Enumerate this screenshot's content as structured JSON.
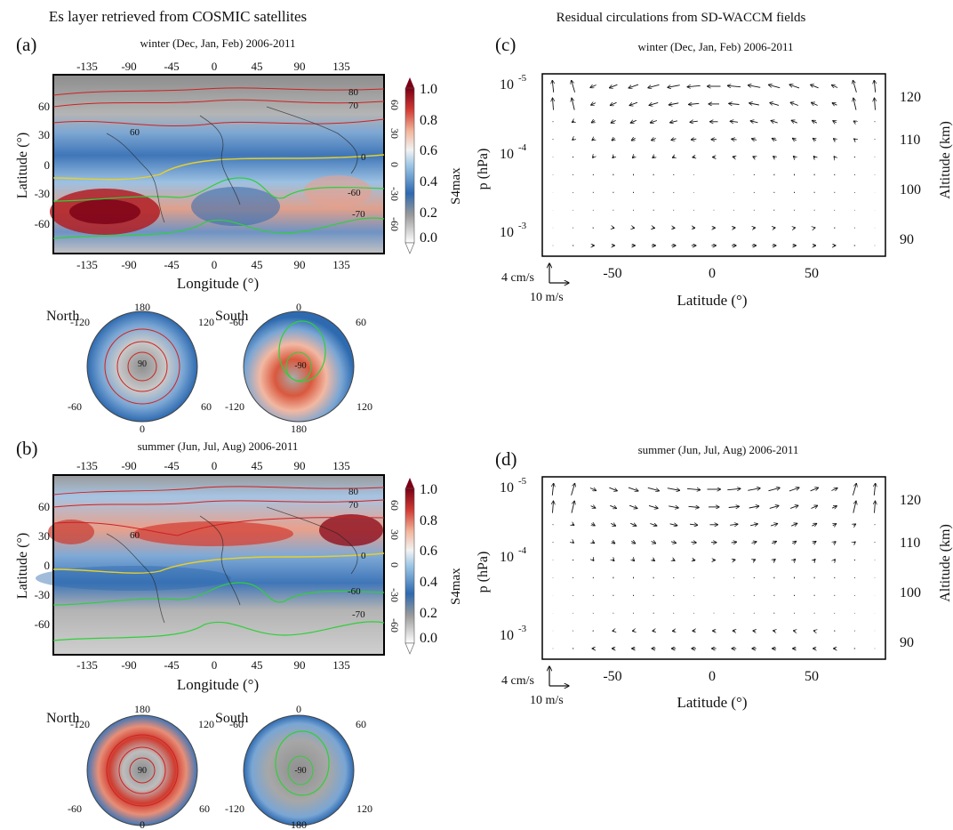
{
  "left_title": "Es layer retrieved from COSMIC satellites",
  "right_title": "Residual circulations from SD-WACCM fields",
  "colorbar": {
    "label": "S4max",
    "ticks": [
      "1.0",
      "0.8",
      "0.6",
      "0.4",
      "0.2",
      "0.0"
    ],
    "colors": [
      "#ffffff",
      "#9a9a9a",
      "#2e6ab0",
      "#9cc6e6",
      "#f2f2f2",
      "#f3b79d",
      "#d13b34",
      "#7a0015"
    ]
  },
  "maps": [
    {
      "panel": "(a)",
      "title": "winter (Dec, Jan, Feb)   2006-2011",
      "xticks": [
        "-135",
        "-90",
        "-45",
        "0",
        "45",
        "90",
        "135"
      ],
      "yticks_left": [
        "60",
        "30",
        "0",
        "-30",
        "-60"
      ],
      "yticks_right": [
        "60",
        "30",
        "0",
        "-30",
        "-60"
      ],
      "xlabel": "Longitude (°)",
      "ylabel": "Latitude (°)",
      "contour_labels": [
        "80",
        "70",
        "60",
        "0",
        "-60",
        "-70"
      ],
      "polar": [
        {
          "name": "North",
          "labels": [
            "180",
            "-120",
            "120",
            "-60",
            "60",
            "0"
          ],
          "center": "90"
        },
        {
          "name": "South",
          "labels": [
            "0",
            "-60",
            "60",
            "-120",
            "120",
            "180"
          ],
          "center": "-90"
        }
      ]
    },
    {
      "panel": "(b)",
      "title": "summer (Jun, Jul, Aug)   2006-2011",
      "xticks": [
        "-135",
        "-90",
        "-45",
        "0",
        "45",
        "90",
        "135"
      ],
      "yticks_left": [
        "60",
        "30",
        "0",
        "-30",
        "-60"
      ],
      "yticks_right": [
        "60",
        "30",
        "0",
        "-30",
        "-60"
      ],
      "xlabel": "Longitude (°)",
      "ylabel": "Latitude (°)",
      "contour_labels": [
        "80",
        "70",
        "60",
        "0",
        "-60",
        "-70"
      ],
      "polar": [
        {
          "name": "North",
          "labels": [
            "180",
            "-120",
            "120",
            "-60",
            "60",
            "0"
          ],
          "center": "90"
        },
        {
          "name": "South",
          "labels": [
            "0",
            "-60",
            "60",
            "-120",
            "120",
            "180"
          ],
          "center": "-90"
        }
      ]
    }
  ],
  "quivers": [
    {
      "panel": "(c)",
      "title": "winter (Dec, Jan, Feb)   2006-2011"
    },
    {
      "panel": "(d)",
      "title": "summer (Jun, Jul, Aug)   2006-2011"
    }
  ],
  "quiver_axes": {
    "xlabel": "Latitude (°)",
    "xticks": [
      "-50",
      "0",
      "50"
    ],
    "ylabel": "p (hPa)",
    "yticks": [
      "10",
      "10",
      "10"
    ],
    "yexp": [
      "-5",
      "-4",
      "-3"
    ],
    "y2label": "Altitude (km)",
    "y2ticks": [
      "120",
      "110",
      "100",
      "90"
    ],
    "ref_vertical": "4 cm/s",
    "ref_horizontal": "10 m/s"
  },
  "chart_data": [
    {
      "type": "heatmap",
      "panel": "(a)",
      "title": "winter (Dec, Jan, Feb)   2006-2011",
      "xlabel": "Longitude (°)",
      "ylabel": "Latitude (°)",
      "xlim": [
        -180,
        180
      ],
      "ylim": [
        -80,
        80
      ],
      "colorbar_label": "S4max",
      "clim": [
        0.0,
        1.0
      ],
      "contour_levels": [
        80,
        70,
        60,
        0,
        -60,
        -70
      ]
    },
    {
      "type": "heatmap",
      "panel": "(b)",
      "title": "summer (Jun, Jul, Aug)   2006-2011",
      "xlabel": "Longitude (°)",
      "ylabel": "Latitude (°)",
      "xlim": [
        -180,
        180
      ],
      "ylim": [
        -80,
        80
      ],
      "colorbar_label": "S4max",
      "clim": [
        0.0,
        1.0
      ],
      "contour_levels": [
        80,
        70,
        60,
        0,
        -60,
        -70
      ]
    },
    {
      "type": "scatter",
      "panel": "(c)",
      "title": "winter (Dec, Jan, Feb)   2006-2011",
      "xlabel": "Latitude (°)",
      "ylabel": "p (hPa)",
      "y2label": "Altitude (km)",
      "xlim": [
        -90,
        90
      ],
      "ylim_altitude_km": [
        87,
        124
      ],
      "reference_vectors": [
        "4 cm/s",
        "10 m/s"
      ]
    },
    {
      "type": "scatter",
      "panel": "(d)",
      "title": "summer (Jun, Jul, Aug)   2006-2011",
      "xlabel": "Latitude (°)",
      "ylabel": "p (hPa)",
      "y2label": "Altitude (km)",
      "xlim": [
        -90,
        90
      ],
      "ylim_altitude_km": [
        87,
        124
      ],
      "reference_vectors": [
        "4 cm/s",
        "10 m/s"
      ]
    }
  ]
}
